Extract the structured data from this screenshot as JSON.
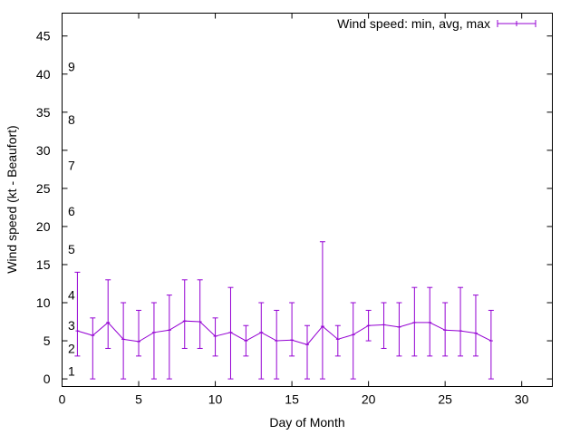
{
  "chart_data": {
    "type": "line",
    "title": "",
    "xlabel": "Day of Month",
    "ylabel": "Wind speed (kt - Beaufort)",
    "xlim": [
      0,
      32
    ],
    "ylim": [
      -1,
      48
    ],
    "xticks": [
      0,
      5,
      10,
      15,
      20,
      25,
      30
    ],
    "yticks": [
      0,
      5,
      10,
      15,
      20,
      25,
      30,
      35,
      40,
      45
    ],
    "grid": false,
    "legend_position": "top-right",
    "color": "#9400d3",
    "beaufort_labels": [
      {
        "label": "1",
        "y": 1
      },
      {
        "label": "2",
        "y": 4
      },
      {
        "label": "3",
        "y": 7
      },
      {
        "label": "4",
        "y": 11
      },
      {
        "label": "5",
        "y": 17
      },
      {
        "label": "6",
        "y": 22
      },
      {
        "label": "7",
        "y": 28
      },
      {
        "label": "8",
        "y": 34
      },
      {
        "label": "9",
        "y": 41
      }
    ],
    "series": [
      {
        "name": "Wind speed: min, avg, max",
        "x": [
          1,
          2,
          3,
          4,
          5,
          6,
          7,
          8,
          9,
          10,
          11,
          12,
          13,
          14,
          15,
          16,
          17,
          18,
          19,
          20,
          21,
          22,
          23,
          24,
          25,
          26,
          27,
          28
        ],
        "avg": [
          6.3,
          5.7,
          7.4,
          5.2,
          4.9,
          6.1,
          6.4,
          7.6,
          7.5,
          5.6,
          6.1,
          5.0,
          6.1,
          5.0,
          5.1,
          4.5,
          6.9,
          5.2,
          5.8,
          7.0,
          7.1,
          6.8,
          7.4,
          7.4,
          6.4,
          6.3,
          6.0,
          5.0
        ],
        "min": [
          3,
          0,
          4,
          0,
          3,
          0,
          0,
          4,
          4,
          3,
          0,
          3,
          0,
          0,
          3,
          0,
          0,
          3,
          0,
          5,
          4,
          3,
          3,
          3,
          3,
          3,
          3,
          0
        ],
        "max": [
          14,
          8,
          13,
          10,
          9,
          10,
          11,
          13,
          13,
          8,
          12,
          7,
          10,
          9,
          10,
          7,
          18,
          7,
          10,
          9,
          10,
          10,
          12,
          12,
          10,
          12,
          11,
          9
        ]
      }
    ]
  }
}
